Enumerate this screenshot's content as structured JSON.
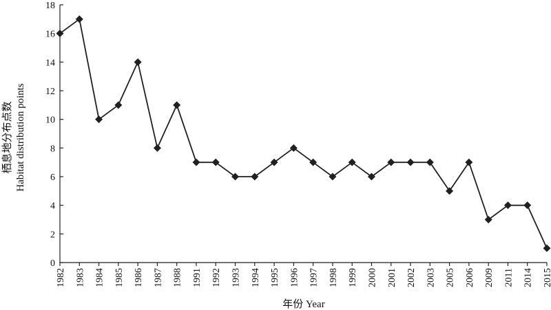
{
  "chart_data": {
    "type": "line",
    "title": "",
    "xlabel": "年份 Year",
    "ylabel_cn": "栖息地分布点数",
    "ylabel_en": "Habitat distribution points",
    "categories": [
      "1982",
      "1983",
      "1984",
      "1985",
      "1986",
      "1987",
      "1988",
      "1991",
      "1992",
      "1993",
      "1994",
      "1995",
      "1996",
      "1997",
      "1998",
      "1999",
      "2000",
      "2001",
      "2002",
      "2003",
      "2005",
      "2006",
      "2009",
      "2011",
      "2014",
      "2015"
    ],
    "series": [
      {
        "values": [
          16,
          17,
          10,
          11,
          14,
          8,
          11,
          7,
          7,
          6,
          6,
          7,
          8,
          7,
          6,
          7,
          6,
          7,
          7,
          7,
          5,
          7,
          3,
          4,
          4,
          1
        ],
        "marker": "diamond",
        "color": "#231f20"
      }
    ],
    "ylim": [
      0,
      18
    ],
    "yticks": [
      0,
      2,
      4,
      6,
      8,
      10,
      12,
      14,
      16,
      18
    ],
    "grid": false,
    "legend": "none"
  }
}
